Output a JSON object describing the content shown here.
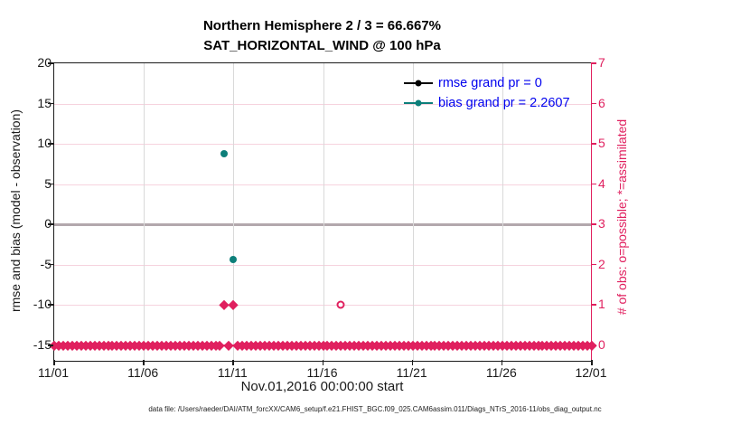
{
  "figure": {
    "title_line1": "Northern Hemisphere 2 / 3 = 66.667%",
    "title_line2": "SAT_HORIZONTAL_WIND @ 100 hPa",
    "caption": "data file: /Users/raeder/DAI/ATM_forcXX/CAM6_setup/f.e21.FHIST_BGC.f09_025.CAM6assim.011/Diags_NTrS_2016-11/obs_diag_output.nc"
  },
  "legend": {
    "text_color": "#0000ee",
    "items": [
      {
        "label": "rmse grand pr = 0",
        "color": "#000000",
        "marker": "dot-line"
      },
      {
        "label": "bias grand pr = 2.2607",
        "color": "#0d7f7a",
        "marker": "dot-line"
      }
    ]
  },
  "colors": {
    "obs_pink": "#e0205f",
    "bias_teal": "#0d7f7a",
    "rmse_black": "#000000",
    "zero_line": "#b3a8ad",
    "hgrid_pink": "#f6d3de",
    "vgrid_gray": "#d9d9d9"
  },
  "chart_data": {
    "type": "line",
    "title": "Northern Hemisphere 2 / 3 = 66.667%",
    "subtitle": "SAT_HORIZONTAL_WIND @ 100 hPa",
    "xlabel": "Nov.01,2016 00:00:00 start",
    "ylabel_left": "rmse and bias (model - observation)",
    "ylabel_right": "# of obs: o=possible; *=assimilated",
    "x_axis": {
      "tick_labels": [
        "11/01",
        "11/06",
        "11/11",
        "11/16",
        "11/21",
        "11/26",
        "12/01"
      ],
      "tick_days": [
        0,
        5,
        10,
        15,
        20,
        25,
        30
      ],
      "span_days": 30,
      "start": "Nov.01,2016 00:00:00"
    },
    "y_axis_left": {
      "ticks": [
        20,
        15,
        10,
        5,
        0,
        -5,
        -10,
        -15
      ],
      "lim": [
        -16.9,
        20
      ]
    },
    "y_axis_right": {
      "ticks": [
        7,
        6,
        5,
        4,
        3,
        2,
        1,
        0
      ],
      "lim": [
        -0.426,
        7
      ]
    },
    "grid": true,
    "legend_position": "top-right-inside",
    "zero_reference_line": {
      "y_left": 0
    },
    "grand_stats": {
      "rmse_grand_pr": 0,
      "bias_grand_pr": 2.2607
    },
    "series": [
      {
        "name": "rmse",
        "axis": "left",
        "color": "#000000",
        "marker": "filled-dot",
        "points": []
      },
      {
        "name": "bias",
        "axis": "left",
        "color": "#0d7f7a",
        "marker": "filled-dot",
        "points": [
          {
            "x_day": 9.5,
            "y": 8.8
          },
          {
            "x_day": 10.0,
            "y": -4.3
          }
        ]
      },
      {
        "name": "possible-obs",
        "axis": "right",
        "color": "#e0205f",
        "marker": "open-circle",
        "points": [
          {
            "x_day": 16.0,
            "y": 1
          }
        ]
      },
      {
        "name": "assimilated-obs",
        "axis": "right",
        "color": "#e0205f",
        "marker": "filled-diamond",
        "baseline": {
          "x_start_day": 0,
          "x_end_day": 30,
          "x_step_day": 0.25,
          "y": 0,
          "skip_days": [
            9.5,
            10.0
          ]
        },
        "elevated_points": [
          {
            "x_day": 9.5,
            "y": 1
          },
          {
            "x_day": 10.0,
            "y": 1
          }
        ],
        "elevated_connector": {
          "x_from_day": 9.5,
          "x_to_day": 10.0,
          "y": 1
        }
      }
    ]
  }
}
